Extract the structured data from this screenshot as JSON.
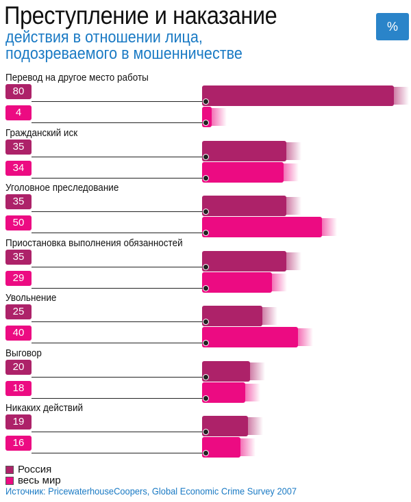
{
  "chart_data": {
    "type": "bar",
    "title": "Преступление и наказание",
    "subtitle": [
      "действия в отношении лица,",
      "подозреваемого в мошенничестве"
    ],
    "unit_label": "%",
    "categories": [
      "Перевод на другое место работы",
      "Гражданский иск",
      "Уголовное преследование",
      "Приостановка выполнения обязанностей",
      "Увольнение",
      "Выговор",
      "Никаких действий"
    ],
    "series": [
      {
        "name": "Россия",
        "color": "#ad2269",
        "values": [
          80,
          35,
          35,
          35,
          25,
          20,
          19
        ]
      },
      {
        "name": "весь мир",
        "color": "#ec0b82",
        "values": [
          4,
          34,
          50,
          29,
          40,
          18,
          16
        ]
      }
    ],
    "source": "Источник: PricewaterhouseCoopers, Global Economic Crime Survey 2007"
  }
}
